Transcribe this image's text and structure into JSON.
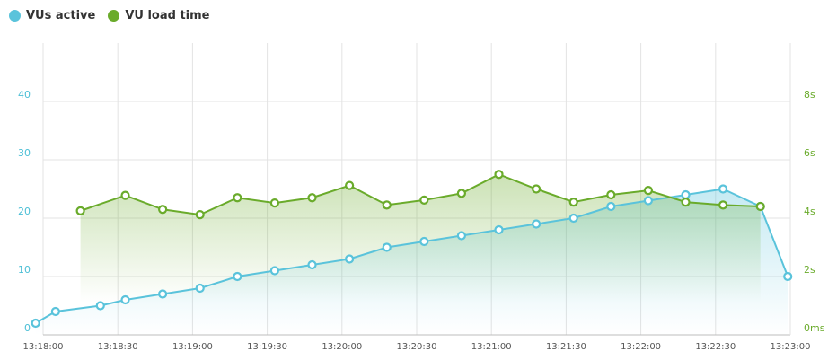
{
  "legend": [
    {
      "label": "VUs active",
      "color": "#5ac3db"
    },
    {
      "label": "VU load time",
      "color": "#6aab2b"
    }
  ],
  "chart_data": {
    "type": "line",
    "x_axis": {
      "ticks": [
        "13:18:00",
        "13:18:30",
        "13:19:00",
        "13:19:30",
        "13:20:00",
        "13:20:30",
        "13:21:00",
        "13:21:30",
        "13:22:00",
        "13:22:30",
        "13:23:00"
      ],
      "range": [
        "13:18:00",
        "13:23:00"
      ]
    },
    "y_left": {
      "ticks": [
        "0",
        "10",
        "20",
        "30",
        "40"
      ],
      "range": [
        0,
        50
      ],
      "color": "#4bbfd6"
    },
    "y_right": {
      "ticks": [
        "0ms",
        "2s",
        "4s",
        "6s",
        "8s"
      ],
      "range": [
        0,
        10
      ],
      "color": "#6aab2b"
    },
    "grid": true,
    "series": [
      {
        "name": "VUs active",
        "axis": "left",
        "color": "#5ac3db",
        "x": [
          "13:17:57",
          "13:18:05",
          "13:18:23",
          "13:18:33",
          "13:18:48",
          "13:19:03",
          "13:19:18",
          "13:19:33",
          "13:19:48",
          "13:20:03",
          "13:20:18",
          "13:20:33",
          "13:20:48",
          "13:21:03",
          "13:21:18",
          "13:21:33",
          "13:21:48",
          "13:22:03",
          "13:22:18",
          "13:22:33",
          "13:22:48",
          "13:22:59"
        ],
        "y": [
          2,
          4,
          5,
          6,
          7,
          8,
          10,
          11,
          12,
          13,
          15,
          16,
          17,
          18,
          19,
          20,
          22,
          23,
          24,
          25,
          22,
          10
        ]
      },
      {
        "name": "VU load time",
        "axis": "right",
        "color": "#6aab2b",
        "unit": "s",
        "x": [
          "13:18:15",
          "13:18:33",
          "13:18:48",
          "13:19:03",
          "13:19:18",
          "13:19:33",
          "13:19:48",
          "13:20:03",
          "13:20:18",
          "13:20:33",
          "13:20:48",
          "13:21:03",
          "13:21:18",
          "13:21:33",
          "13:21:48",
          "13:22:03",
          "13:22:18",
          "13:22:33",
          "13:22:48"
        ],
        "y": [
          4.25,
          4.78,
          4.3,
          4.12,
          4.7,
          4.52,
          4.7,
          5.12,
          4.45,
          4.62,
          4.85,
          5.5,
          5.0,
          4.55,
          4.8,
          4.95,
          4.55,
          4.45,
          4.4
        ]
      }
    ]
  }
}
